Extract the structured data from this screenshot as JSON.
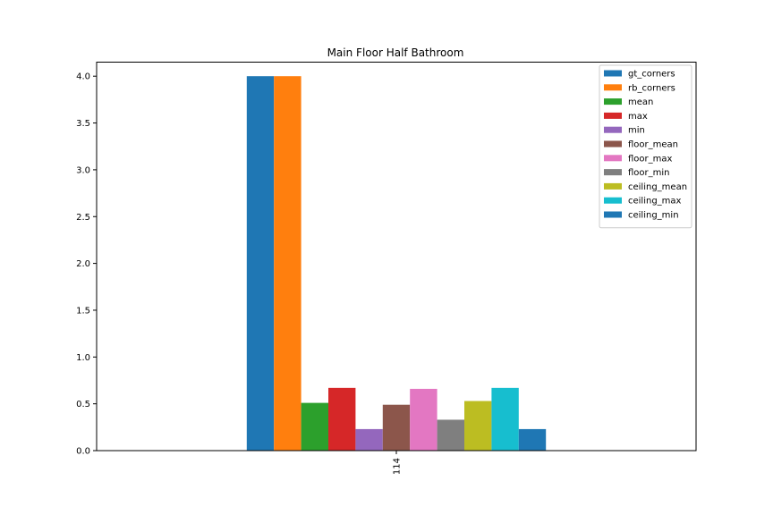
{
  "chart_data": {
    "type": "bar",
    "title": "Main Floor Half Bathroom",
    "xlabel": "",
    "ylabel": "",
    "categories": [
      "114"
    ],
    "ylim": [
      0,
      4.15
    ],
    "yticks": [
      "0.0",
      "0.5",
      "1.0",
      "1.5",
      "2.0",
      "2.5",
      "3.0",
      "3.5",
      "4.0"
    ],
    "grid": false,
    "legend_position": "top-right",
    "series": [
      {
        "name": "gt_corners",
        "values": [
          4.0
        ],
        "color": "#1f77b4"
      },
      {
        "name": "rb_corners",
        "values": [
          4.0
        ],
        "color": "#ff7f0e"
      },
      {
        "name": "mean",
        "values": [
          0.51
        ],
        "color": "#2ca02c"
      },
      {
        "name": "max",
        "values": [
          0.67
        ],
        "color": "#d62728"
      },
      {
        "name": "min",
        "values": [
          0.23
        ],
        "color": "#9467bd"
      },
      {
        "name": "floor_mean",
        "values": [
          0.49
        ],
        "color": "#8c564b"
      },
      {
        "name": "floor_max",
        "values": [
          0.66
        ],
        "color": "#e377c2"
      },
      {
        "name": "floor_min",
        "values": [
          0.33
        ],
        "color": "#7f7f7f"
      },
      {
        "name": "ceiling_mean",
        "values": [
          0.53
        ],
        "color": "#bcbd22"
      },
      {
        "name": "ceiling_max",
        "values": [
          0.67
        ],
        "color": "#17becf"
      },
      {
        "name": "ceiling_min",
        "values": [
          0.23
        ],
        "color": "#1f77b4"
      }
    ]
  }
}
